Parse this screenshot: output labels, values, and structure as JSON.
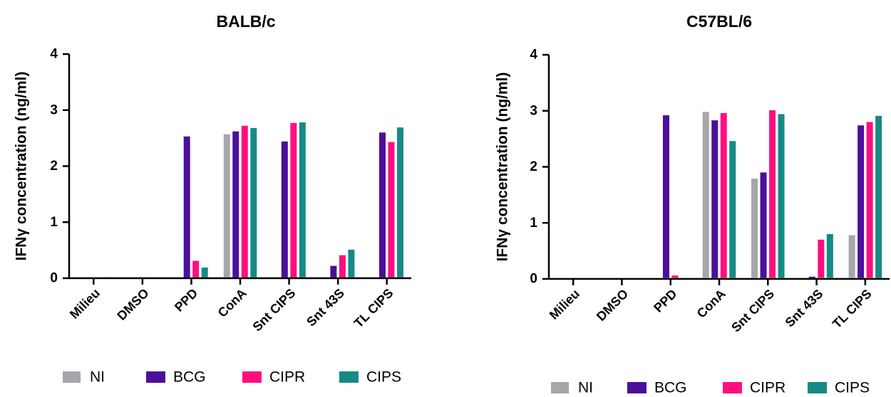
{
  "chart_data": [
    {
      "type": "bar",
      "title": "BALB/c",
      "xlabel": "",
      "ylabel": "IFNγ concentration (ng/ml)",
      "ylim": [
        0,
        4
      ],
      "yticks": [
        0,
        1,
        2,
        3,
        4
      ],
      "grid": false,
      "legend_position": "bottom",
      "categories": [
        "Milieu",
        "DMSO",
        "PPD",
        "ConA",
        "Snt CIPS",
        "Snt 43S",
        "TL CIPS"
      ],
      "series": [
        {
          "name": "NI",
          "color": "#a6a6ab",
          "values": [
            0,
            0,
            0,
            2.57,
            0,
            0,
            0
          ]
        },
        {
          "name": "BCG",
          "color": "#4b0f9b",
          "values": [
            0,
            0,
            2.53,
            2.62,
            2.44,
            0.22,
            2.6
          ]
        },
        {
          "name": "CIPR",
          "color": "#ff0f80",
          "values": [
            0,
            0,
            0.31,
            2.72,
            2.77,
            0.41,
            2.43
          ]
        },
        {
          "name": "CIPS",
          "color": "#168a86",
          "values": [
            0.02,
            0,
            0.19,
            2.68,
            2.78,
            0.51,
            2.69
          ]
        }
      ]
    },
    {
      "type": "bar",
      "title": "C57BL/6",
      "xlabel": "",
      "ylabel": "IFNγ concentration (ng/ml)",
      "ylim": [
        0,
        4
      ],
      "yticks": [
        0,
        1,
        2,
        3,
        4
      ],
      "grid": false,
      "legend_position": "bottom",
      "categories": [
        "Milieu",
        "DMSO",
        "PPD",
        "ConA",
        "Snt CIPS",
        "Snt 43S",
        "TL CIPS"
      ],
      "series": [
        {
          "name": "NI",
          "color": "#a6a6ab",
          "values": [
            0,
            0,
            0,
            2.98,
            1.79,
            0,
            0.78
          ]
        },
        {
          "name": "BCG",
          "color": "#4b0f9b",
          "values": [
            0,
            0,
            2.92,
            2.83,
            1.9,
            0.04,
            2.74
          ]
        },
        {
          "name": "CIPR",
          "color": "#ff0f80",
          "values": [
            0,
            0,
            0.06,
            2.96,
            3.01,
            0.7,
            2.8
          ]
        },
        {
          "name": "CIPS",
          "color": "#168a86",
          "values": [
            0,
            0,
            0,
            2.46,
            2.94,
            0.8,
            2.91
          ]
        }
      ]
    }
  ]
}
